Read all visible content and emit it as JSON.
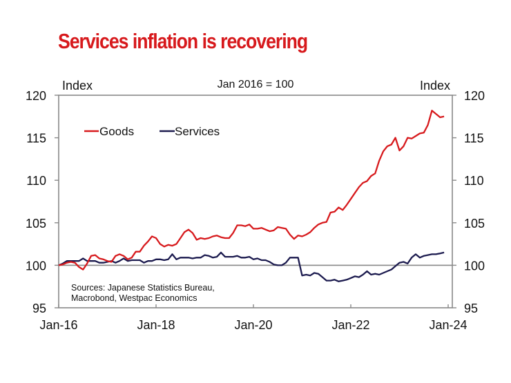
{
  "chart_data": {
    "type": "line",
    "title": "Services inflation is recovering",
    "subtitle": "Jan 2016 = 100",
    "ylabel_left": "Index",
    "ylabel_right": "Index",
    "xlabel": "",
    "ylim": [
      95,
      120
    ],
    "yticks": [
      95,
      100,
      105,
      110,
      115,
      120
    ],
    "ytick_labels": [
      "95",
      "100",
      "105",
      "110",
      "115",
      "120"
    ],
    "xlim": [
      "Jan-16",
      "Jan-24"
    ],
    "xticks": [
      "Jan-16",
      "Jan-18",
      "Jan-20",
      "Jan-22",
      "Jan-24"
    ],
    "reference_line": 100,
    "grid": false,
    "legend": {
      "placement": "top-left",
      "entries": [
        "Goods",
        "Services"
      ]
    },
    "annotation": [
      "Sources: Japanese Statistics Bureau,",
      "Macrobond, Westpac Economics"
    ],
    "x_start": "Jan-16",
    "x_frequency": "monthly",
    "series": [
      {
        "name": "Goods",
        "color": "#d7191c",
        "values": [
          100.0,
          100.1,
          100.3,
          100.4,
          100.3,
          99.8,
          99.5,
          100.2,
          101.1,
          101.2,
          100.8,
          100.7,
          100.5,
          100.4,
          101.1,
          101.3,
          101.1,
          100.7,
          100.9,
          101.6,
          101.6,
          102.3,
          102.8,
          103.4,
          103.2,
          102.5,
          102.2,
          102.4,
          102.3,
          102.5,
          103.2,
          103.9,
          104.2,
          103.8,
          103.0,
          103.2,
          103.1,
          103.2,
          103.4,
          103.5,
          103.3,
          103.2,
          103.2,
          103.8,
          104.7,
          104.7,
          104.6,
          104.8,
          104.3,
          104.3,
          104.4,
          104.2,
          104.0,
          104.1,
          104.5,
          104.4,
          104.3,
          103.6,
          103.1,
          103.5,
          103.4,
          103.6,
          103.9,
          104.4,
          104.8,
          105.0,
          105.1,
          106.2,
          106.3,
          106.8,
          106.5,
          107.1,
          107.8,
          108.5,
          109.2,
          109.7,
          109.9,
          110.5,
          110.8,
          112.3,
          113.4,
          114.0,
          114.2,
          115.0,
          113.5,
          114.0,
          115.0,
          114.9,
          115.2,
          115.5,
          115.6,
          116.5,
          118.2,
          117.8,
          117.4,
          117.5
        ]
      },
      {
        "name": "Services",
        "color": "#1b1a4e",
        "values": [
          100.0,
          100.2,
          100.5,
          100.5,
          100.5,
          100.5,
          100.8,
          100.5,
          100.5,
          100.5,
          100.3,
          100.3,
          100.4,
          100.5,
          100.3,
          100.5,
          100.8,
          100.5,
          100.6,
          100.6,
          100.6,
          100.3,
          100.5,
          100.5,
          100.7,
          100.7,
          100.6,
          100.7,
          101.3,
          100.7,
          100.9,
          100.9,
          100.9,
          100.8,
          100.9,
          100.9,
          101.2,
          101.1,
          100.9,
          101.0,
          101.5,
          101.0,
          101.0,
          101.0,
          101.1,
          100.9,
          100.9,
          101.0,
          100.7,
          100.8,
          100.6,
          100.6,
          100.4,
          100.1,
          100.0,
          100.0,
          100.3,
          100.9,
          100.9,
          100.9,
          98.8,
          98.9,
          98.8,
          99.1,
          99.0,
          98.6,
          98.2,
          98.2,
          98.3,
          98.1,
          98.2,
          98.3,
          98.5,
          98.7,
          98.6,
          98.9,
          99.3,
          98.9,
          99.0,
          98.9,
          99.1,
          99.3,
          99.5,
          99.9,
          100.3,
          100.4,
          100.2,
          100.9,
          101.3,
          100.9,
          101.1,
          101.2,
          101.3,
          101.3,
          101.4,
          101.5
        ]
      }
    ]
  }
}
